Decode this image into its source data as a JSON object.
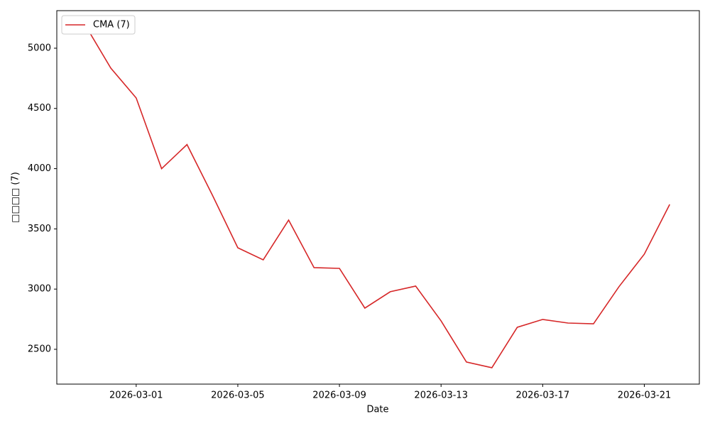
{
  "chart_data": {
    "type": "line",
    "x_label": "Date",
    "y_label": "□□□□ (7)",
    "x": [
      "2026-02-27",
      "2026-02-28",
      "2026-03-01",
      "2026-03-02",
      "2026-03-03",
      "2026-03-04",
      "2026-03-05",
      "2026-03-06",
      "2026-03-07",
      "2026-03-08",
      "2026-03-09",
      "2026-03-10",
      "2026-03-11",
      "2026-03-12",
      "2026-03-13",
      "2026-03-14",
      "2026-03-15",
      "2026-03-16",
      "2026-03-17",
      "2026-03-18",
      "2026-03-19",
      "2026-03-20",
      "2026-03-21",
      "2026-03-22"
    ],
    "series": [
      {
        "name": "CMA (7)",
        "color": "#d62728",
        "values": [
          5190,
          4835,
          4587,
          4000,
          4200,
          3780,
          3343,
          3243,
          3573,
          3178,
          3172,
          2842,
          2978,
          3025,
          2736,
          2394,
          2347,
          2683,
          2748,
          2718,
          2712,
          3019,
          3290,
          3703
        ]
      }
    ],
    "xlim": [
      "2026-02-25T21:00",
      "2026-03-23T04:00"
    ],
    "xticks": [
      "2026-03-01",
      "2026-03-05",
      "2026-03-09",
      "2026-03-13",
      "2026-03-17",
      "2026-03-21"
    ],
    "ylim": [
      2211,
      5312
    ],
    "yticks": [
      2500,
      3000,
      3500,
      4000,
      4500,
      5000
    ],
    "grid": false,
    "legend": "upper left"
  }
}
